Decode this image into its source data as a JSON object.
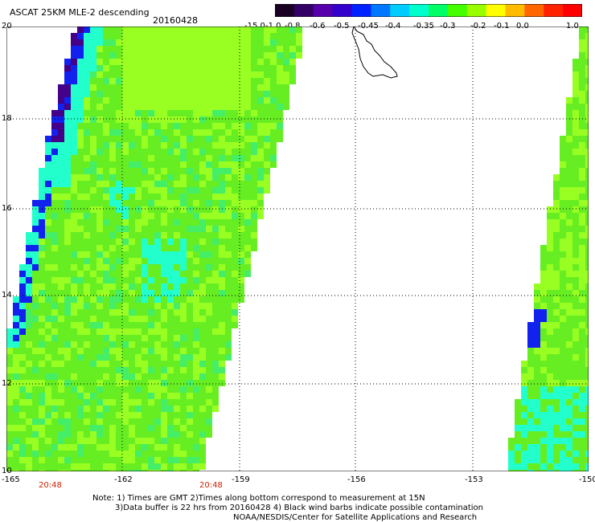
{
  "header": {
    "title": "ASCAT 25KM MLE-2 descending",
    "date": "20160428"
  },
  "colorbar": {
    "labels": [
      "-15.0",
      "-1.0",
      "-0.8",
      "-0.6",
      "-0.5",
      "-0.45",
      "-0.4",
      "-0.35",
      "-0.3",
      "-0.2",
      "-0.1",
      "0.0",
      "1.0"
    ],
    "colors": [
      "#1a0022",
      "#330066",
      "#5500aa",
      "#3300cc",
      "#0022ff",
      "#0077ff",
      "#00ccff",
      "#00ffcc",
      "#00ff66",
      "#44ff00",
      "#99ff00",
      "#ffff00",
      "#ffbb00",
      "#ff6600",
      "#ff2200",
      "#ff0000"
    ]
  },
  "axes": {
    "lat_labels": [
      "20",
      "18",
      "16",
      "14",
      "12",
      "10"
    ],
    "lon_labels": [
      "-165",
      "-162",
      "-159",
      "-156",
      "-153",
      "-150"
    ],
    "time_labels": [
      "20:48",
      "20:48"
    ]
  },
  "notes": {
    "line1": "Note: 1) Times are GMT 2)Times along bottom correspond to measurement at 15N",
    "line2": "3)Data buffer is 22 hrs from 20160428 4) Black wind barbs indicate possible contamination",
    "line3": "NOAA/NESDIS/Center for Satellite Applications and Research"
  },
  "colors": {
    "swath_main": "#66ee22",
    "swath_light": "#99ff22",
    "swath_cyan": "#22ffcc",
    "swath_blue": "#1122ee",
    "swath_purple": "#440088"
  }
}
